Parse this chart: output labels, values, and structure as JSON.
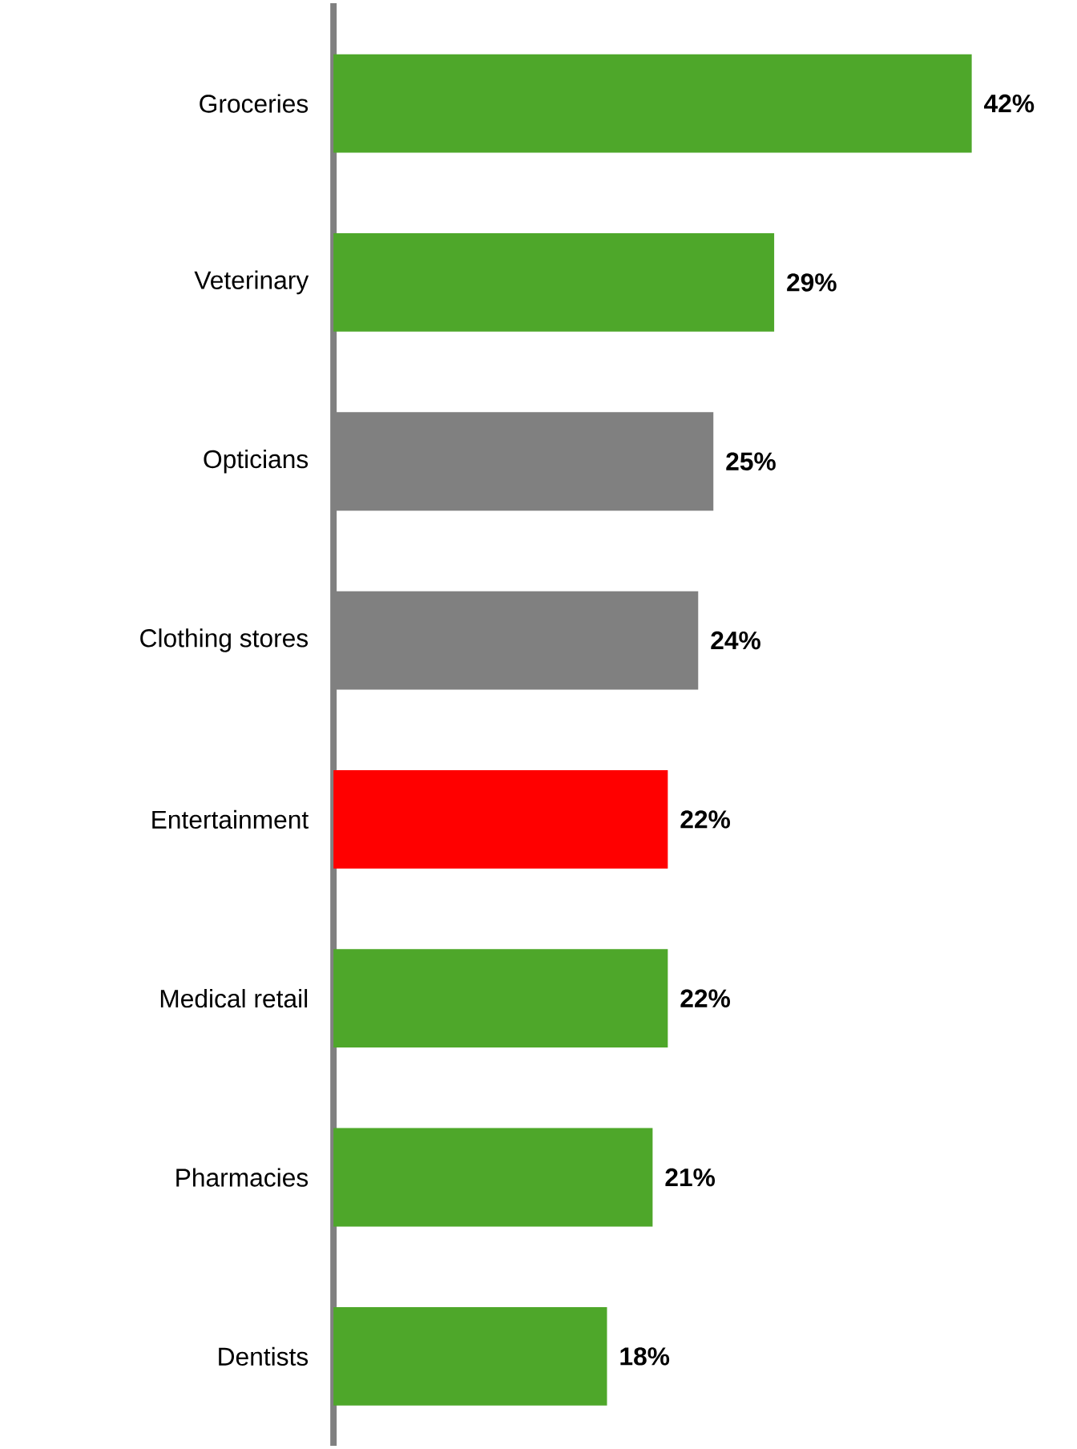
{
  "chart_data": {
    "type": "bar",
    "orientation": "horizontal",
    "categories": [
      "Groceries",
      "Veterinary",
      "Opticians",
      "Clothing stores",
      "Entertainment",
      "Medical retail",
      "Pharmacies",
      "Dentists"
    ],
    "values": [
      42,
      29,
      25,
      24,
      22,
      22,
      21,
      18
    ],
    "colors": [
      "#4ea72a",
      "#4ea72a",
      "#808080",
      "#808080",
      "#ff0000",
      "#4ea72a",
      "#4ea72a",
      "#4ea72a"
    ],
    "value_labels": [
      "42%",
      "29%",
      "25%",
      "24%",
      "22%",
      "22%",
      "21%",
      "18%"
    ],
    "xlim": [
      0,
      42
    ],
    "tick_labels": "y"
  }
}
